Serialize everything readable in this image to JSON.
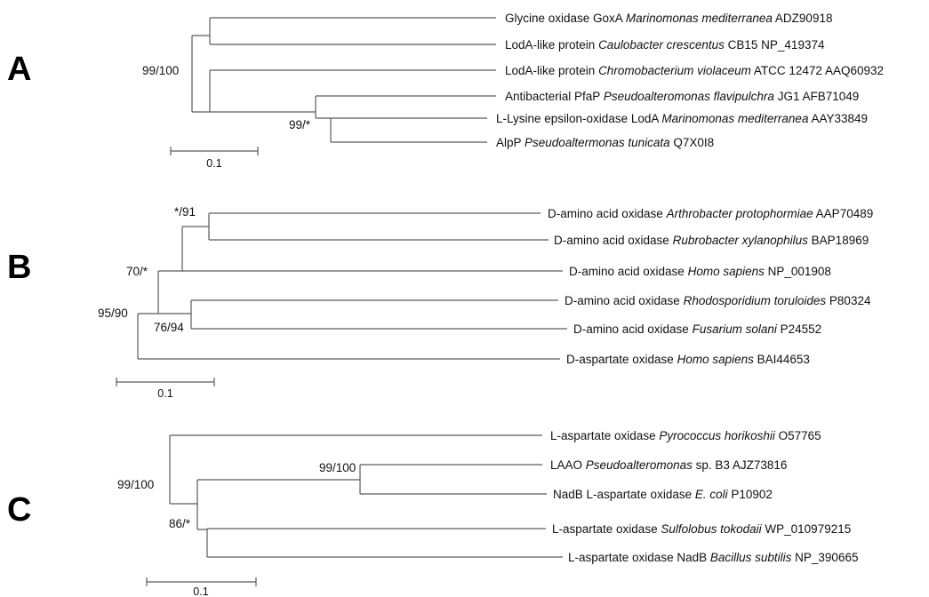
{
  "panels": [
    {
      "letter": "A",
      "leaves": [
        {
          "name": "Glycine oxidase GoxA ",
          "species": "Marinomonas mediterranea",
          "acc": " ADZ90918"
        },
        {
          "name": "LodA-like protein ",
          "species": "Caulobacter crescentus",
          "acc": " CB15 NP_419374"
        },
        {
          "name": "LodA-like protein ",
          "species": "Chromobacterium violaceum",
          "acc": " ATCC 12472 AAQ60932"
        },
        {
          "name": "Antibacterial PfaP ",
          "species": "Pseudoalteromonas flavipulchra",
          "acc": " JG1 AFB71049"
        },
        {
          "name": "L-Lysine epsilon-oxidase LodA ",
          "species": "Marinomonas mediterranea",
          "acc": " AAY33849"
        },
        {
          "name": "AlpP ",
          "species": "Pseudoaltermonas tunicata",
          "acc": " Q7X0I8"
        }
      ],
      "supports": [
        "99/100",
        "99/*"
      ],
      "scale_label": "0.1"
    },
    {
      "letter": "B",
      "leaves": [
        {
          "name": "D-amino acid oxidase ",
          "species": "Arthrobacter protophormiae",
          "acc": " AAP70489"
        },
        {
          "name": "D-amino acid oxidase ",
          "species": "Rubrobacter xylanophilus",
          "acc": " BAP18969"
        },
        {
          "name": "D-amino acid oxidase ",
          "species": "Homo sapiens",
          "acc": " NP_001908"
        },
        {
          "name": "D-amino acid oxidase ",
          "species": "Rhodosporidium toruloides",
          "acc": " P80324"
        },
        {
          "name": "D-amino acid oxidase ",
          "species": "Fusarium solani",
          "acc": " P24552"
        },
        {
          "name": "D-aspartate oxidase ",
          "species": "Homo sapiens",
          "acc": " BAI44653"
        }
      ],
      "supports": [
        "*/91",
        "70/*",
        "95/90",
        "76/94"
      ],
      "scale_label": "0.1"
    },
    {
      "letter": "C",
      "leaves": [
        {
          "name": "L-aspartate oxidase ",
          "species": "Pyrococcus horikoshii",
          "acc": " O57765"
        },
        {
          "name": "LAAO ",
          "species": "Pseudoalteromonas",
          "acc": " sp. B3 AJZ73816"
        },
        {
          "name": "NadB L-aspartate oxidase ",
          "species": "E. coli",
          "acc": " P10902"
        },
        {
          "name": "L-aspartate oxidase ",
          "species": "Sulfolobus tokodaii",
          "acc": " WP_010979215"
        },
        {
          "name": "L-aspartate oxidase NadB ",
          "species": "Bacillus subtilis",
          "acc": " NP_390665"
        }
      ],
      "supports": [
        "99/100",
        "99/100",
        "86/*"
      ],
      "scale_label": "0.1"
    }
  ]
}
